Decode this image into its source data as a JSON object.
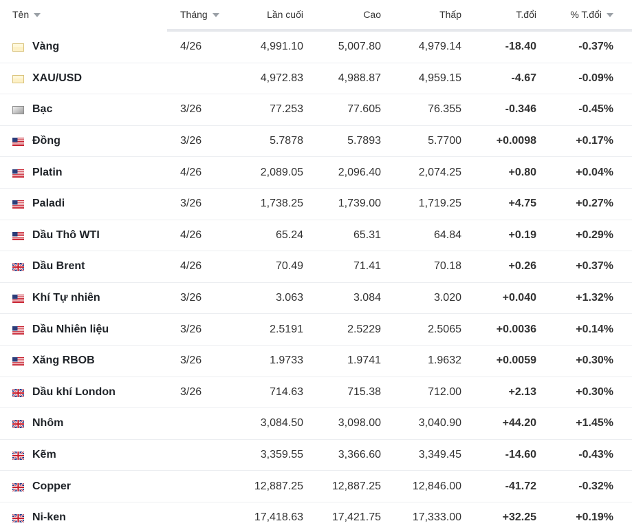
{
  "columns": {
    "name": "Tên",
    "month": "Tháng",
    "last": "Lần cuối",
    "high": "Cao",
    "low": "Thấp",
    "change": "T.đổi",
    "change_pct": "% T.đổi"
  },
  "colors": {
    "negative": "#d32f2f",
    "positive": "#1e8a3a"
  },
  "rows": [
    {
      "flag": "gold-flag-icon",
      "name": "Vàng",
      "month": "4/26",
      "last": "4,991.10",
      "high": "5,007.80",
      "low": "4,979.14",
      "change": "-18.40",
      "change_pct": "-0.37%",
      "dir": "neg"
    },
    {
      "flag": "gold-flag-icon",
      "name": "XAU/USD",
      "month": "",
      "last": "4,972.83",
      "high": "4,988.87",
      "low": "4,959.15",
      "change": "-4.67",
      "change_pct": "-0.09%",
      "dir": "neg"
    },
    {
      "flag": "silver-flag-icon",
      "name": "Bạc",
      "month": "3/26",
      "last": "77.253",
      "high": "77.605",
      "low": "76.355",
      "change": "-0.346",
      "change_pct": "-0.45%",
      "dir": "neg"
    },
    {
      "flag": "us-flag-icon",
      "name": "Đồng",
      "month": "3/26",
      "last": "5.7878",
      "high": "5.7893",
      "low": "5.7700",
      "change": "+0.0098",
      "change_pct": "+0.17%",
      "dir": "pos"
    },
    {
      "flag": "us-flag-icon",
      "name": "Platin",
      "month": "4/26",
      "last": "2,089.05",
      "high": "2,096.40",
      "low": "2,074.25",
      "change": "+0.80",
      "change_pct": "+0.04%",
      "dir": "pos"
    },
    {
      "flag": "us-flag-icon",
      "name": "Paladi",
      "month": "3/26",
      "last": "1,738.25",
      "high": "1,739.00",
      "low": "1,719.25",
      "change": "+4.75",
      "change_pct": "+0.27%",
      "dir": "pos"
    },
    {
      "flag": "us-flag-icon",
      "name": "Dầu Thô WTI",
      "month": "4/26",
      "last": "65.24",
      "high": "65.31",
      "low": "64.84",
      "change": "+0.19",
      "change_pct": "+0.29%",
      "dir": "pos"
    },
    {
      "flag": "uk-flag-icon",
      "name": "Dầu Brent",
      "month": "4/26",
      "last": "70.49",
      "high": "71.41",
      "low": "70.18",
      "change": "+0.26",
      "change_pct": "+0.37%",
      "dir": "pos"
    },
    {
      "flag": "us-flag-icon",
      "name": "Khí Tự nhiên",
      "month": "3/26",
      "last": "3.063",
      "high": "3.084",
      "low": "3.020",
      "change": "+0.040",
      "change_pct": "+1.32%",
      "dir": "pos"
    },
    {
      "flag": "us-flag-icon",
      "name": "Dầu Nhiên liệu",
      "month": "3/26",
      "last": "2.5191",
      "high": "2.5229",
      "low": "2.5065",
      "change": "+0.0036",
      "change_pct": "+0.14%",
      "dir": "pos"
    },
    {
      "flag": "us-flag-icon",
      "name": "Xăng RBOB",
      "month": "3/26",
      "last": "1.9733",
      "high": "1.9741",
      "low": "1.9632",
      "change": "+0.0059",
      "change_pct": "+0.30%",
      "dir": "pos"
    },
    {
      "flag": "uk-flag-icon",
      "name": "Dầu khí London",
      "month": "3/26",
      "last": "714.63",
      "high": "715.38",
      "low": "712.00",
      "change": "+2.13",
      "change_pct": "+0.30%",
      "dir": "pos"
    },
    {
      "flag": "uk-flag-icon",
      "name": "Nhôm",
      "month": "",
      "last": "3,084.50",
      "high": "3,098.00",
      "low": "3,040.90",
      "change": "+44.20",
      "change_pct": "+1.45%",
      "dir": "pos"
    },
    {
      "flag": "uk-flag-icon",
      "name": "Kẽm",
      "month": "",
      "last": "3,359.55",
      "high": "3,366.60",
      "low": "3,349.45",
      "change": "-14.60",
      "change_pct": "-0.43%",
      "dir": "neg"
    },
    {
      "flag": "uk-flag-icon",
      "name": "Copper",
      "month": "",
      "last": "12,887.25",
      "high": "12,887.25",
      "low": "12,846.00",
      "change": "-41.72",
      "change_pct": "-0.32%",
      "dir": "neg"
    },
    {
      "flag": "uk-flag-icon",
      "name": "Ni-ken",
      "month": "",
      "last": "17,418.63",
      "high": "17,421.75",
      "low": "17,333.00",
      "change": "+32.25",
      "change_pct": "+0.19%",
      "dir": "pos"
    }
  ]
}
